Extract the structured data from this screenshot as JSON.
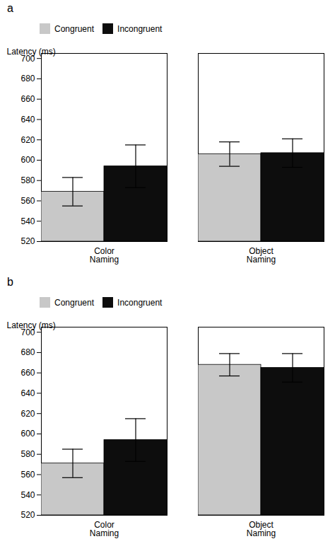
{
  "chart_data": [
    {
      "type": "bar",
      "title": "a",
      "categories": [
        "Color\nNaming",
        "Object\nNaming"
      ],
      "series": [
        {
          "name": "Congruent",
          "color": "#c8c8c8",
          "values": [
            569,
            606
          ],
          "errors": [
            14,
            12
          ]
        },
        {
          "name": "Incongruent",
          "color": "#0d0d0d",
          "values": [
            594,
            607
          ],
          "errors": [
            21,
            14
          ]
        }
      ],
      "ylabel": "Latency (ms)",
      "ylim": [
        520,
        705
      ],
      "yticks": [
        520,
        540,
        560,
        580,
        600,
        620,
        640,
        660,
        680,
        700
      ],
      "legend": "upper left"
    },
    {
      "type": "bar",
      "title": "b",
      "categories": [
        "Color\nNaming",
        "Object\nNaming"
      ],
      "series": [
        {
          "name": "Congruent",
          "color": "#c8c8c8",
          "values": [
            571,
            668
          ],
          "errors": [
            14,
            11
          ]
        },
        {
          "name": "Incongruent",
          "color": "#0d0d0d",
          "values": [
            594,
            665
          ],
          "errors": [
            21,
            14
          ]
        }
      ],
      "ylabel": "Latency (ms)",
      "ylim": [
        520,
        705
      ],
      "yticks": [
        520,
        540,
        560,
        580,
        600,
        620,
        640,
        660,
        680,
        700
      ],
      "legend": "upper left"
    }
  ]
}
